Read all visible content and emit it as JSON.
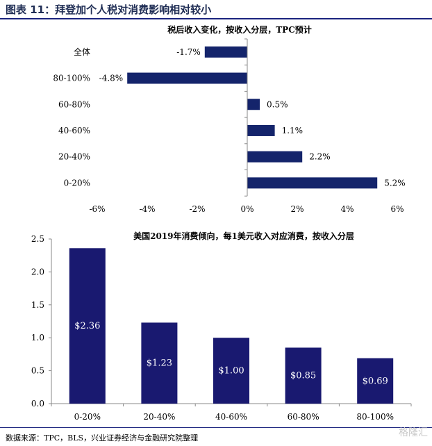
{
  "figure": {
    "title": "图表 11：拜登加个人税对消费影响相对较小",
    "source": "数据来源：TPC，BLS，兴业证券经济与金融研究院整理",
    "watermark": "格隆汇"
  },
  "colors": {
    "bar": "#14246b",
    "bar2": "#191970",
    "rule": "#1a237e"
  },
  "chart_data": [
    {
      "type": "bar",
      "orientation": "horizontal",
      "title": "税后收入变化，按收入分层，TPC预计",
      "categories": [
        "全体",
        "80-100%",
        "60-80%",
        "40-60%",
        "20-40%",
        "0-20%"
      ],
      "values": [
        -1.7,
        -4.8,
        0.5,
        1.1,
        2.2,
        5.2
      ],
      "data_labels": [
        "-1.7%",
        "-4.8%",
        "0.5%",
        "1.1%",
        "2.2%",
        "5.2%"
      ],
      "xlim": [
        -6,
        6
      ],
      "xticks": [
        -6,
        -4,
        -2,
        0,
        2,
        4,
        6
      ],
      "xtick_labels": [
        "-6%",
        "-4%",
        "-2%",
        "0%",
        "2%",
        "4%",
        "6%"
      ],
      "grid": false
    },
    {
      "type": "bar",
      "orientation": "vertical",
      "title": "美国2019年消费倾向，每1美元收入对应消费，按收入分层",
      "categories": [
        "0-20%",
        "20-40%",
        "40-60%",
        "60-80%",
        "80-100%"
      ],
      "values": [
        2.36,
        1.23,
        1.0,
        0.85,
        0.69
      ],
      "data_labels": [
        "$2.36",
        "$1.23",
        "$1.00",
        "$0.85",
        "$0.69"
      ],
      "ylim": [
        0,
        2.5
      ],
      "yticks": [
        0.0,
        0.5,
        1.0,
        1.5,
        2.0,
        2.5
      ],
      "ytick_labels": [
        "0.0",
        "0.5",
        "1.0",
        "1.5",
        "2.0",
        "2.5"
      ],
      "grid": false
    }
  ]
}
